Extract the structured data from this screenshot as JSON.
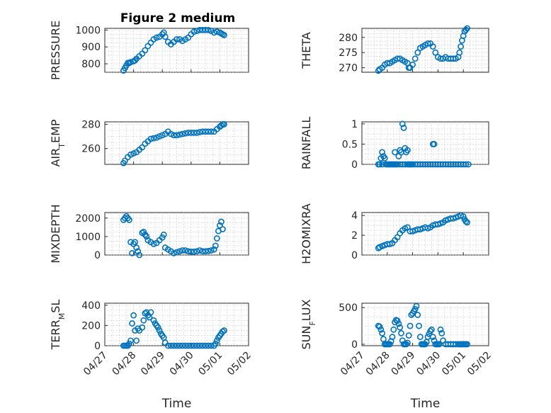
{
  "figure": {
    "title": "Figure 2 medium"
  },
  "colors": {
    "marker": "#0072BD",
    "axes": "#262626",
    "grid": "#bdbdbd"
  },
  "chart_data": [
    {
      "type": "scatter",
      "ylabel": "PRESSURE",
      "ylim": [
        750,
        1010
      ],
      "yticks": [
        800,
        900,
        1000
      ],
      "grid": true,
      "title": "Figure 2 medium",
      "xlim": [
        0,
        5
      ],
      "xlabel": "",
      "x": [
        0.65,
        0.7,
        0.75,
        0.8,
        0.85,
        0.9,
        1.0,
        1.05,
        1.1,
        1.2,
        1.3,
        1.4,
        1.5,
        1.6,
        1.7,
        1.8,
        1.9,
        2.0,
        2.05,
        2.1,
        2.2,
        2.3,
        2.4,
        2.5,
        2.6,
        2.7,
        2.8,
        2.9,
        3.0,
        3.1,
        3.2,
        3.3,
        3.4,
        3.5,
        3.6,
        3.7,
        3.8,
        3.9,
        4.0,
        4.05,
        4.1,
        4.15
      ],
      "y": [
        760,
        775,
        790,
        805,
        805,
        810,
        815,
        820,
        830,
        845,
        860,
        880,
        905,
        925,
        945,
        955,
        960,
        975,
        985,
        960,
        930,
        915,
        930,
        945,
        945,
        935,
        945,
        955,
        975,
        990,
        995,
        1000,
        1000,
        1000,
        1000,
        995,
        985,
        990,
        985,
        980,
        975,
        970
      ]
    },
    {
      "type": "scatter",
      "ylabel": "THETA",
      "ylim": [
        268.5,
        283
      ],
      "yticks": [
        270,
        275,
        280
      ],
      "grid": true,
      "xlim": [
        0,
        5
      ],
      "xlabel": "",
      "x": [
        0.65,
        0.7,
        0.8,
        0.9,
        1.0,
        1.1,
        1.2,
        1.3,
        1.4,
        1.5,
        1.6,
        1.7,
        1.8,
        1.85,
        1.9,
        2.0,
        2.1,
        2.2,
        2.3,
        2.4,
        2.5,
        2.6,
        2.7,
        2.8,
        2.9,
        3.0,
        3.1,
        3.2,
        3.3,
        3.4,
        3.5,
        3.6,
        3.7,
        3.8,
        3.85,
        3.9,
        3.95,
        4.0,
        4.05,
        4.1,
        4.15
      ],
      "y": [
        269,
        269.5,
        270,
        271,
        271.5,
        271.5,
        272,
        272.5,
        273,
        273,
        272.5,
        272,
        271.5,
        270,
        270,
        271,
        273,
        275,
        276.5,
        277,
        277.5,
        278,
        278,
        277,
        275,
        273.5,
        273,
        273,
        273.5,
        273,
        273,
        273,
        273,
        273.5,
        275,
        277,
        279,
        280.5,
        282,
        282.5,
        283
      ]
    },
    {
      "type": "scatter",
      "ylabel": "AIR_TEMP",
      "ylim": [
        247,
        282
      ],
      "yticks": [
        260,
        280
      ],
      "grid": true,
      "xlim": [
        0,
        5
      ],
      "xlabel": "",
      "x": [
        0.65,
        0.7,
        0.8,
        0.9,
        1.0,
        1.1,
        1.2,
        1.3,
        1.4,
        1.5,
        1.6,
        1.7,
        1.8,
        1.9,
        2.0,
        2.1,
        2.2,
        2.3,
        2.4,
        2.5,
        2.6,
        2.7,
        2.8,
        2.9,
        3.0,
        3.1,
        3.2,
        3.3,
        3.4,
        3.5,
        3.6,
        3.7,
        3.8,
        3.9,
        4.0,
        4.05,
        4.1,
        4.15
      ],
      "y": [
        248,
        250,
        253,
        255,
        256,
        257,
        259,
        261,
        264,
        266,
        268,
        268.5,
        269,
        270,
        271,
        272,
        274,
        272,
        271,
        271,
        271.5,
        272,
        272.5,
        273,
        273,
        273,
        273,
        273.5,
        274,
        274,
        274,
        274,
        274,
        276,
        278,
        279,
        280,
        280
      ]
    },
    {
      "type": "scatter",
      "ylabel": "RAINFALL",
      "ylim": [
        0,
        1.05
      ],
      "yticks": [
        0,
        0.5,
        1
      ],
      "grid": true,
      "xlim": [
        0,
        5
      ],
      "xlabel": "",
      "x": [
        0.65,
        0.7,
        0.75,
        0.8,
        0.8,
        0.85,
        0.9,
        0.95,
        1.0,
        1.05,
        1.1,
        1.15,
        1.2,
        1.25,
        1.3,
        1.3,
        1.35,
        1.4,
        1.45,
        1.5,
        1.5,
        1.55,
        1.6,
        1.6,
        1.65,
        1.7,
        1.7,
        1.75,
        1.8,
        1.8,
        1.85,
        1.9,
        1.95,
        2.0,
        2.1,
        2.2,
        2.3,
        2.4,
        2.5,
        2.6,
        2.7,
        2.8,
        2.9,
        3.0,
        3.1,
        3.2,
        3.3,
        3.4,
        3.5,
        3.6,
        3.7,
        3.8,
        3.9,
        4.0,
        4.1,
        4.2,
        2.8,
        2.85
      ],
      "y": [
        0,
        0,
        0.15,
        0.3,
        0,
        0.2,
        0.15,
        0,
        0,
        0,
        0,
        0,
        0,
        0,
        0.3,
        0,
        0,
        0,
        0.2,
        0.35,
        0,
        0.3,
        1.0,
        0,
        0.9,
        0.4,
        0,
        0.3,
        0.35,
        0,
        0,
        0,
        0,
        0,
        0,
        0,
        0,
        0,
        0,
        0,
        0,
        0,
        0,
        0,
        0,
        0,
        0,
        0,
        0,
        0,
        0,
        0,
        0,
        0,
        0,
        0,
        0.5,
        0.5
      ]
    },
    {
      "type": "scatter",
      "ylabel": "MIXDEPTH",
      "ylim": [
        0,
        2300
      ],
      "yticks": [
        0,
        1000,
        2000
      ],
      "grid": true,
      "xlim": [
        0,
        5
      ],
      "xlabel": "",
      "x": [
        0.65,
        0.7,
        0.75,
        0.8,
        0.85,
        0.9,
        0.95,
        1.0,
        1.05,
        1.1,
        1.15,
        1.2,
        1.3,
        1.35,
        1.4,
        1.45,
        1.5,
        1.6,
        1.7,
        1.8,
        1.9,
        2.0,
        2.05,
        2.1,
        2.2,
        2.3,
        2.4,
        2.5,
        2.6,
        2.7,
        2.8,
        2.9,
        3.0,
        3.1,
        3.2,
        3.3,
        3.4,
        3.5,
        3.6,
        3.7,
        3.8,
        3.85,
        3.9,
        3.95,
        4.0,
        4.05,
        4.1
      ],
      "y": [
        1900,
        2000,
        2100,
        2000,
        1900,
        700,
        100,
        600,
        700,
        400,
        200,
        0,
        1200,
        1250,
        1100,
        1000,
        800,
        700,
        600,
        650,
        800,
        950,
        1100,
        400,
        300,
        200,
        100,
        150,
        200,
        250,
        250,
        200,
        180,
        180,
        200,
        250,
        200,
        200,
        220,
        250,
        300,
        500,
        900,
        1300,
        1600,
        1800,
        1400
      ]
    },
    {
      "type": "scatter",
      "ylabel": "H2OMIXRA",
      "ylim": [
        0,
        4.3
      ],
      "yticks": [
        0,
        2,
        4
      ],
      "grid": true,
      "xlim": [
        0,
        5
      ],
      "xlabel": "",
      "x": [
        0.65,
        0.7,
        0.8,
        0.9,
        1.0,
        1.1,
        1.2,
        1.3,
        1.4,
        1.5,
        1.6,
        1.7,
        1.8,
        1.9,
        2.0,
        2.1,
        2.2,
        2.3,
        2.4,
        2.5,
        2.6,
        2.7,
        2.8,
        2.9,
        3.0,
        3.1,
        3.2,
        3.3,
        3.4,
        3.5,
        3.6,
        3.7,
        3.8,
        3.9,
        4.0,
        4.05,
        4.1,
        4.15
      ],
      "y": [
        0.7,
        0.8,
        0.9,
        1.0,
        1.1,
        1.1,
        1.2,
        1.5,
        1.8,
        2.2,
        2.5,
        2.7,
        2.8,
        2.4,
        2.4,
        2.5,
        2.6,
        2.6,
        2.7,
        2.8,
        2.7,
        2.8,
        3.0,
        3.1,
        3.1,
        3.2,
        3.3,
        3.5,
        3.6,
        3.7,
        3.7,
        3.8,
        3.9,
        4.0,
        3.9,
        3.6,
        3.4,
        3.3
      ]
    },
    {
      "type": "scatter",
      "ylabel": "TERR_MSL",
      "ylim": [
        0,
        420
      ],
      "yticks": [
        0,
        200,
        400
      ],
      "grid": true,
      "xlim": [
        0,
        5
      ],
      "xlabel": "Time",
      "xticks": [
        "04/27",
        "04/28",
        "04/29",
        "04/30",
        "05/01",
        "05/02"
      ],
      "x": [
        0.65,
        0.7,
        0.75,
        0.8,
        0.85,
        0.9,
        0.95,
        1.0,
        1.05,
        1.1,
        1.15,
        1.2,
        1.3,
        1.35,
        1.4,
        1.45,
        1.5,
        1.55,
        1.6,
        1.7,
        1.75,
        1.8,
        1.85,
        1.9,
        1.95,
        2.0,
        2.05,
        2.1,
        2.2,
        2.3,
        2.4,
        2.5,
        2.6,
        2.7,
        2.8,
        2.9,
        3.0,
        3.1,
        3.2,
        3.3,
        3.4,
        3.5,
        3.6,
        3.7,
        3.8,
        3.85,
        3.9,
        3.95,
        4.0,
        4.05,
        4.1,
        4.15
      ],
      "y": [
        0,
        0,
        0,
        0,
        20,
        50,
        220,
        300,
        150,
        50,
        170,
        150,
        180,
        250,
        320,
        330,
        300,
        280,
        330,
        250,
        220,
        200,
        180,
        150,
        120,
        100,
        80,
        30,
        0,
        0,
        0,
        0,
        0,
        0,
        0,
        0,
        0,
        0,
        0,
        0,
        0,
        0,
        0,
        0,
        0,
        20,
        50,
        80,
        100,
        120,
        140,
        150
      ]
    },
    {
      "type": "scatter",
      "ylabel": "SUN_FLUX",
      "ylim": [
        -20,
        560
      ],
      "yticks": [
        0,
        500
      ],
      "grid": true,
      "xlim": [
        0,
        5
      ],
      "xlabel": "Time",
      "xticks": [
        "04/27",
        "04/28",
        "04/29",
        "04/30",
        "05/01",
        "05/02"
      ],
      "x": [
        0.65,
        0.7,
        0.75,
        0.8,
        0.85,
        0.9,
        0.95,
        1.0,
        1.05,
        1.1,
        1.15,
        1.2,
        1.25,
        1.3,
        1.35,
        1.4,
        1.45,
        1.5,
        1.55,
        1.6,
        1.65,
        1.7,
        1.75,
        1.8,
        1.85,
        1.9,
        1.95,
        2.0,
        2.05,
        2.1,
        2.15,
        2.2,
        2.25,
        2.3,
        2.35,
        2.4,
        2.45,
        2.5,
        2.55,
        2.6,
        2.65,
        2.7,
        2.75,
        2.8,
        2.85,
        2.9,
        2.95,
        3.0,
        3.05,
        3.1,
        3.15,
        3.2,
        3.3,
        3.4,
        3.5,
        3.6,
        3.7,
        3.8,
        3.85,
        3.9,
        3.95,
        4.0,
        4.05,
        4.1,
        4.15
      ],
      "y": [
        250,
        240,
        200,
        150,
        70,
        0,
        0,
        0,
        0,
        0,
        40,
        100,
        200,
        300,
        330,
        320,
        280,
        230,
        150,
        50,
        0,
        0,
        0,
        20,
        120,
        250,
        400,
        420,
        450,
        480,
        520,
        400,
        250,
        100,
        0,
        0,
        0,
        0,
        30,
        100,
        140,
        180,
        200,
        100,
        50,
        0,
        0,
        0,
        0,
        200,
        150,
        50,
        0,
        0,
        0,
        0,
        0,
        0,
        0,
        0,
        0,
        0,
        0,
        0,
        0
      ]
    }
  ]
}
